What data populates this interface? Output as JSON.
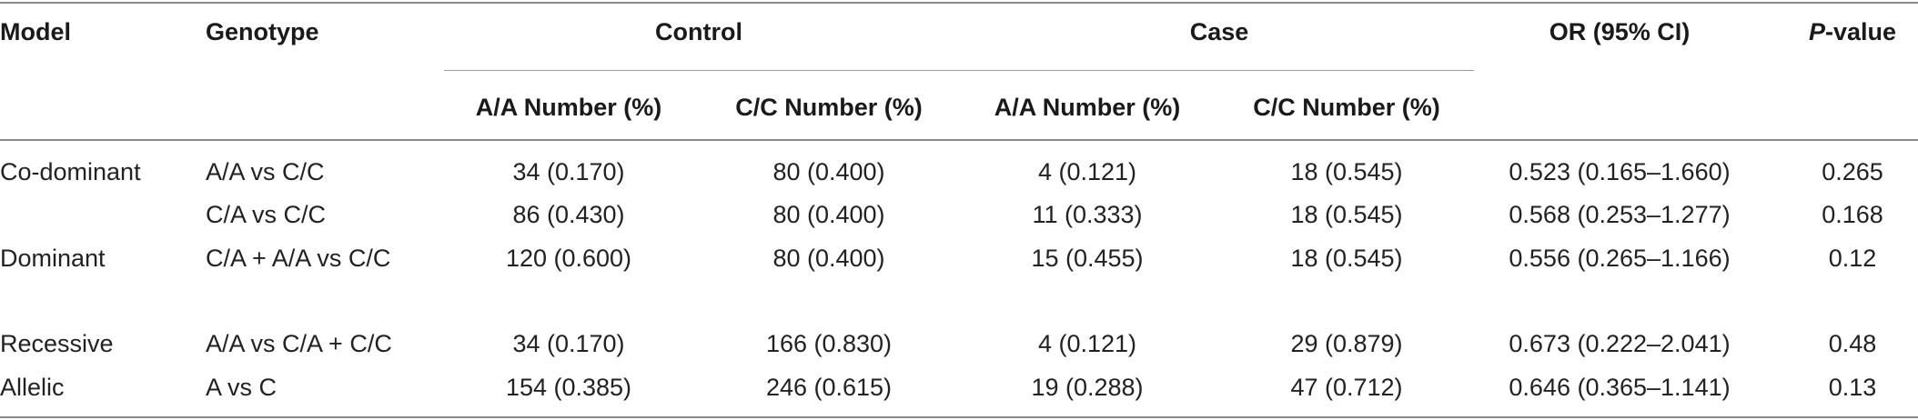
{
  "table": {
    "headers": {
      "model": "Model",
      "genotype": "Genotype",
      "control": "Control",
      "case": "Case",
      "or": "OR (95% CI)",
      "p_italic": "P",
      "p_rest": "-value",
      "control_aa": "A/A Number (%)",
      "control_cc": "C/C Number (%)",
      "case_aa": "A/A Number (%)",
      "case_cc": "C/C Number (%)"
    },
    "rows": [
      {
        "model": "Co-dominant",
        "genotype": "A/A vs C/C",
        "control_aa": "34 (0.170)",
        "control_cc": "80 (0.400)",
        "case_aa": "4 (0.121)",
        "case_cc": "18 (0.545)",
        "or": "0.523 (0.165–1.660)",
        "p": "0.265"
      },
      {
        "model": "",
        "genotype": "C/A vs C/C",
        "control_aa": "86 (0.430)",
        "control_cc": "80 (0.400)",
        "case_aa": "11 (0.333)",
        "case_cc": "18 (0.545)",
        "or": "0.568 (0.253–1.277)",
        "p": "0.168"
      },
      {
        "model": "Dominant",
        "genotype": "C/A + A/A vs C/C",
        "control_aa": "120 (0.600)",
        "control_cc": "80 (0.400)",
        "case_aa": "15 (0.455)",
        "case_cc": "18 (0.545)",
        "or": "0.556 (0.265–1.166)",
        "p": "0.12"
      },
      {
        "model": "Recessive",
        "genotype": "A/A vs C/A + C/C",
        "control_aa": "34 (0.170)",
        "control_cc": "166 (0.830)",
        "case_aa": "4 (0.121)",
        "case_cc": "29 (0.879)",
        "or": "0.673 (0.222–2.041)",
        "p": "0.48"
      },
      {
        "model": "Allelic",
        "genotype": "A vs C",
        "control_aa": "154 (0.385)",
        "control_cc": "246 (0.615)",
        "case_aa": "19 (0.288)",
        "case_cc": "47 (0.712)",
        "or": "0.646 (0.365–1.141)",
        "p": "0.13"
      }
    ]
  }
}
